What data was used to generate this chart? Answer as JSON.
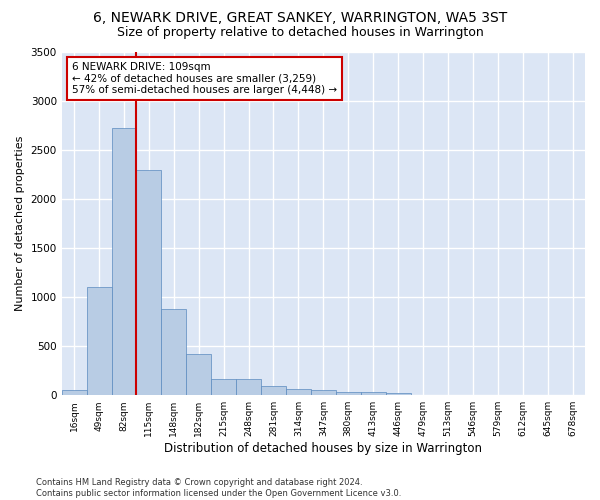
{
  "title": "6, NEWARK DRIVE, GREAT SANKEY, WARRINGTON, WA5 3ST",
  "subtitle": "Size of property relative to detached houses in Warrington",
  "xlabel": "Distribution of detached houses by size in Warrington",
  "ylabel": "Number of detached properties",
  "categories": [
    "16sqm",
    "49sqm",
    "82sqm",
    "115sqm",
    "148sqm",
    "182sqm",
    "215sqm",
    "248sqm",
    "281sqm",
    "314sqm",
    "347sqm",
    "380sqm",
    "413sqm",
    "446sqm",
    "479sqm",
    "513sqm",
    "546sqm",
    "579sqm",
    "612sqm",
    "645sqm",
    "678sqm"
  ],
  "values": [
    50,
    1100,
    2720,
    2290,
    880,
    415,
    170,
    170,
    90,
    60,
    55,
    35,
    30,
    20,
    0,
    0,
    0,
    0,
    0,
    0,
    0
  ],
  "bar_color": "#b8cce4",
  "bar_edge_color": "#5a8abf",
  "background_color": "#dce6f5",
  "grid_color": "#ffffff",
  "vline_color": "#cc0000",
  "annotation_text": "6 NEWARK DRIVE: 109sqm\n← 42% of detached houses are smaller (3,259)\n57% of semi-detached houses are larger (4,448) →",
  "annotation_box_color": "#ffffff",
  "annotation_box_edge": "#cc0000",
  "ylim": [
    0,
    3500
  ],
  "yticks": [
    0,
    500,
    1000,
    1500,
    2000,
    2500,
    3000,
    3500
  ],
  "footer_line1": "Contains HM Land Registry data © Crown copyright and database right 2024.",
  "footer_line2": "Contains public sector information licensed under the Open Government Licence v3.0.",
  "title_fontsize": 10,
  "subtitle_fontsize": 9,
  "xlabel_fontsize": 8.5,
  "ylabel_fontsize": 8
}
